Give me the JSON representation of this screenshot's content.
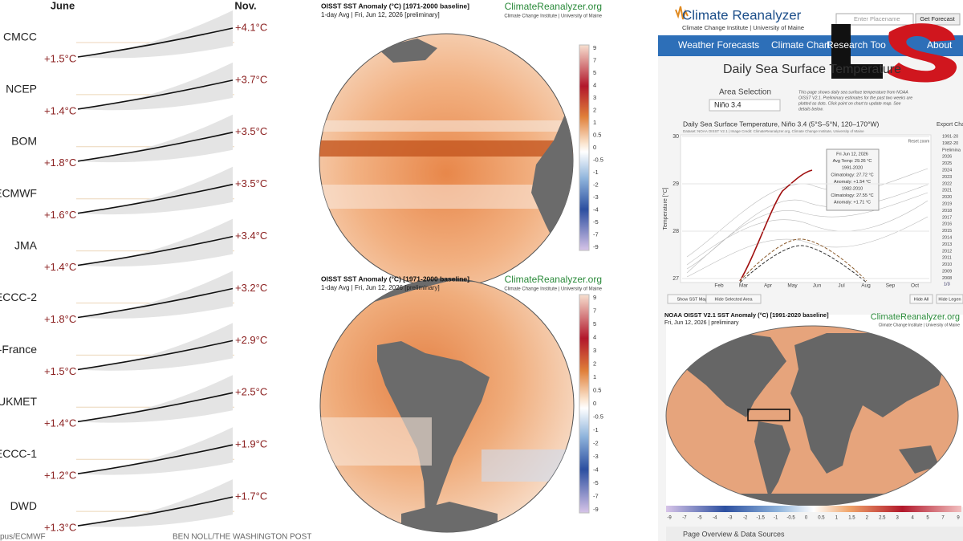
{
  "left": {
    "start_header": "June",
    "end_header": "Nov.",
    "models": [
      {
        "name": "CMCC",
        "start": "+1.5°C",
        "end": "+4.1°C"
      },
      {
        "name": "NCEP",
        "start": "+1.4°C",
        "end": "+3.7°C"
      },
      {
        "name": "BOM",
        "start": "+1.8°C",
        "end": "+3.5°C"
      },
      {
        "name": "ECMWF",
        "start": "+1.6°C",
        "end": "+3.5°C"
      },
      {
        "name": "JMA",
        "start": "+1.4°C",
        "end": "+3.4°C"
      },
      {
        "name": "ECCC-2",
        "start": "+1.8°C",
        "end": "+3.2°C"
      },
      {
        "name": "o-France",
        "start": "+1.5°C",
        "end": "+2.9°C"
      },
      {
        "name": "UKMET",
        "start": "+1.4°C",
        "end": "+2.5°C"
      },
      {
        "name": "ECCC-1",
        "start": "+1.2°C",
        "end": "+1.9°C"
      },
      {
        "name": "DWD",
        "start": "+1.3°C",
        "end": "+1.7°C"
      }
    ],
    "source": "pus/ECMWF",
    "credit": "BEN NOLL/THE WASHINGTON POST"
  },
  "maps": [
    {
      "title": "OISST SST Anomaly (°C) [1971-2000 baseline]",
      "subtitle": "1-day Avg | Fri, Jun 12, 2026 [preliminary]",
      "brand": "ClimateReanalyzer.org",
      "institute": "Climate Change Institute | University of Maine"
    },
    {
      "title": "OISST SST Anomaly (°C) [1971-2000 baseline]",
      "subtitle": "1-day Avg | Fri, Jun 12, 2026 [preliminary]",
      "brand": "ClimateReanalyzer.org",
      "institute": "Climate Change Institute | University of Maine"
    }
  ],
  "scale": [
    "9",
    "7",
    "5",
    "4",
    "3",
    "2",
    "1",
    "0.5",
    "0",
    "-0.5",
    "-1",
    "-2",
    "-3",
    "-4",
    "-5",
    "-7",
    "-9"
  ],
  "reanalyzer": {
    "logo": "Climate Reanalyzer",
    "logo_sub": "Climate Change Institute | University of Maine",
    "search_placeholder": "Enter Placename",
    "search_button": "Get Forecast",
    "nav": [
      "Weather Forecasts",
      "Climate Chart",
      "Research Too",
      "About"
    ],
    "page_title": "Daily Sea Surface Temperature",
    "area_label": "Area Selection",
    "area_value": "Niño 3.4",
    "description": [
      "This page shows daily sea surface temperature from NOAA",
      "OISST V2.1. Preliminary estimates for the past two weeks are",
      "plotted as dots. Click point on chart to update map. See",
      "details below."
    ],
    "chart_title": "Daily Sea Surface Temperature, Niño 3.4 (5°S–5°N, 120–170°W)",
    "chart_credit": "Dataset: NOAA OISST V2.1 | Image Credit: ClimateReanalyzer.org, Climate Change Institute, University of Maine",
    "export": "Export Cha",
    "reset": "Reset zoom",
    "y_label": "Temperature [°C]",
    "yticks": [
      "30",
      "29",
      "28",
      "27"
    ],
    "months": [
      "Feb",
      "Mar",
      "Apr",
      "May",
      "Jun",
      "Jul",
      "Aug",
      "Sep",
      "Oct"
    ],
    "tooltip": [
      "Fri Jun 12, 2026",
      "Avg Temp: 29.26 °C",
      "1991-2020",
      "Climatology: 27.72 °C",
      "Anomaly: +1.54 °C",
      "1982-2010",
      "Climatology: 27.55 °C",
      "Anomaly: +1.71 °C"
    ],
    "legend": [
      "1991-20",
      "1982-20",
      "Prelimina",
      "2026",
      "2025",
      "2024",
      "2023",
      "2022",
      "2021",
      "2020",
      "2019",
      "2018",
      "2017",
      "2016",
      "2015",
      "2014",
      "2013",
      "2012",
      "2011",
      "2010",
      "2009",
      "2008"
    ],
    "pager": "1/3",
    "buttons": [
      "Show SST Map",
      "Hide Selected Area",
      "Hide All",
      "Hide Legen"
    ],
    "map_title": "NOAA OISST V2.1 SST Anomaly (°C) [1991-2020 baseline]",
    "map_subtitle": "Fri, Jun 12, 2026 | preliminary",
    "map_brand": "ClimateReanalyzer.org",
    "map_institute": "Climate Change Institute | University of Maine",
    "colorbar": [
      "-9",
      "-7",
      "-5",
      "-4",
      "-3",
      "-2",
      "-1.5",
      "-1",
      "-0.5",
      "0",
      "0.5",
      "1",
      "1.5",
      "2",
      "2.5",
      "3",
      "4",
      "5",
      "7",
      "9"
    ],
    "footer": "Page Overview & Data Sources"
  }
}
